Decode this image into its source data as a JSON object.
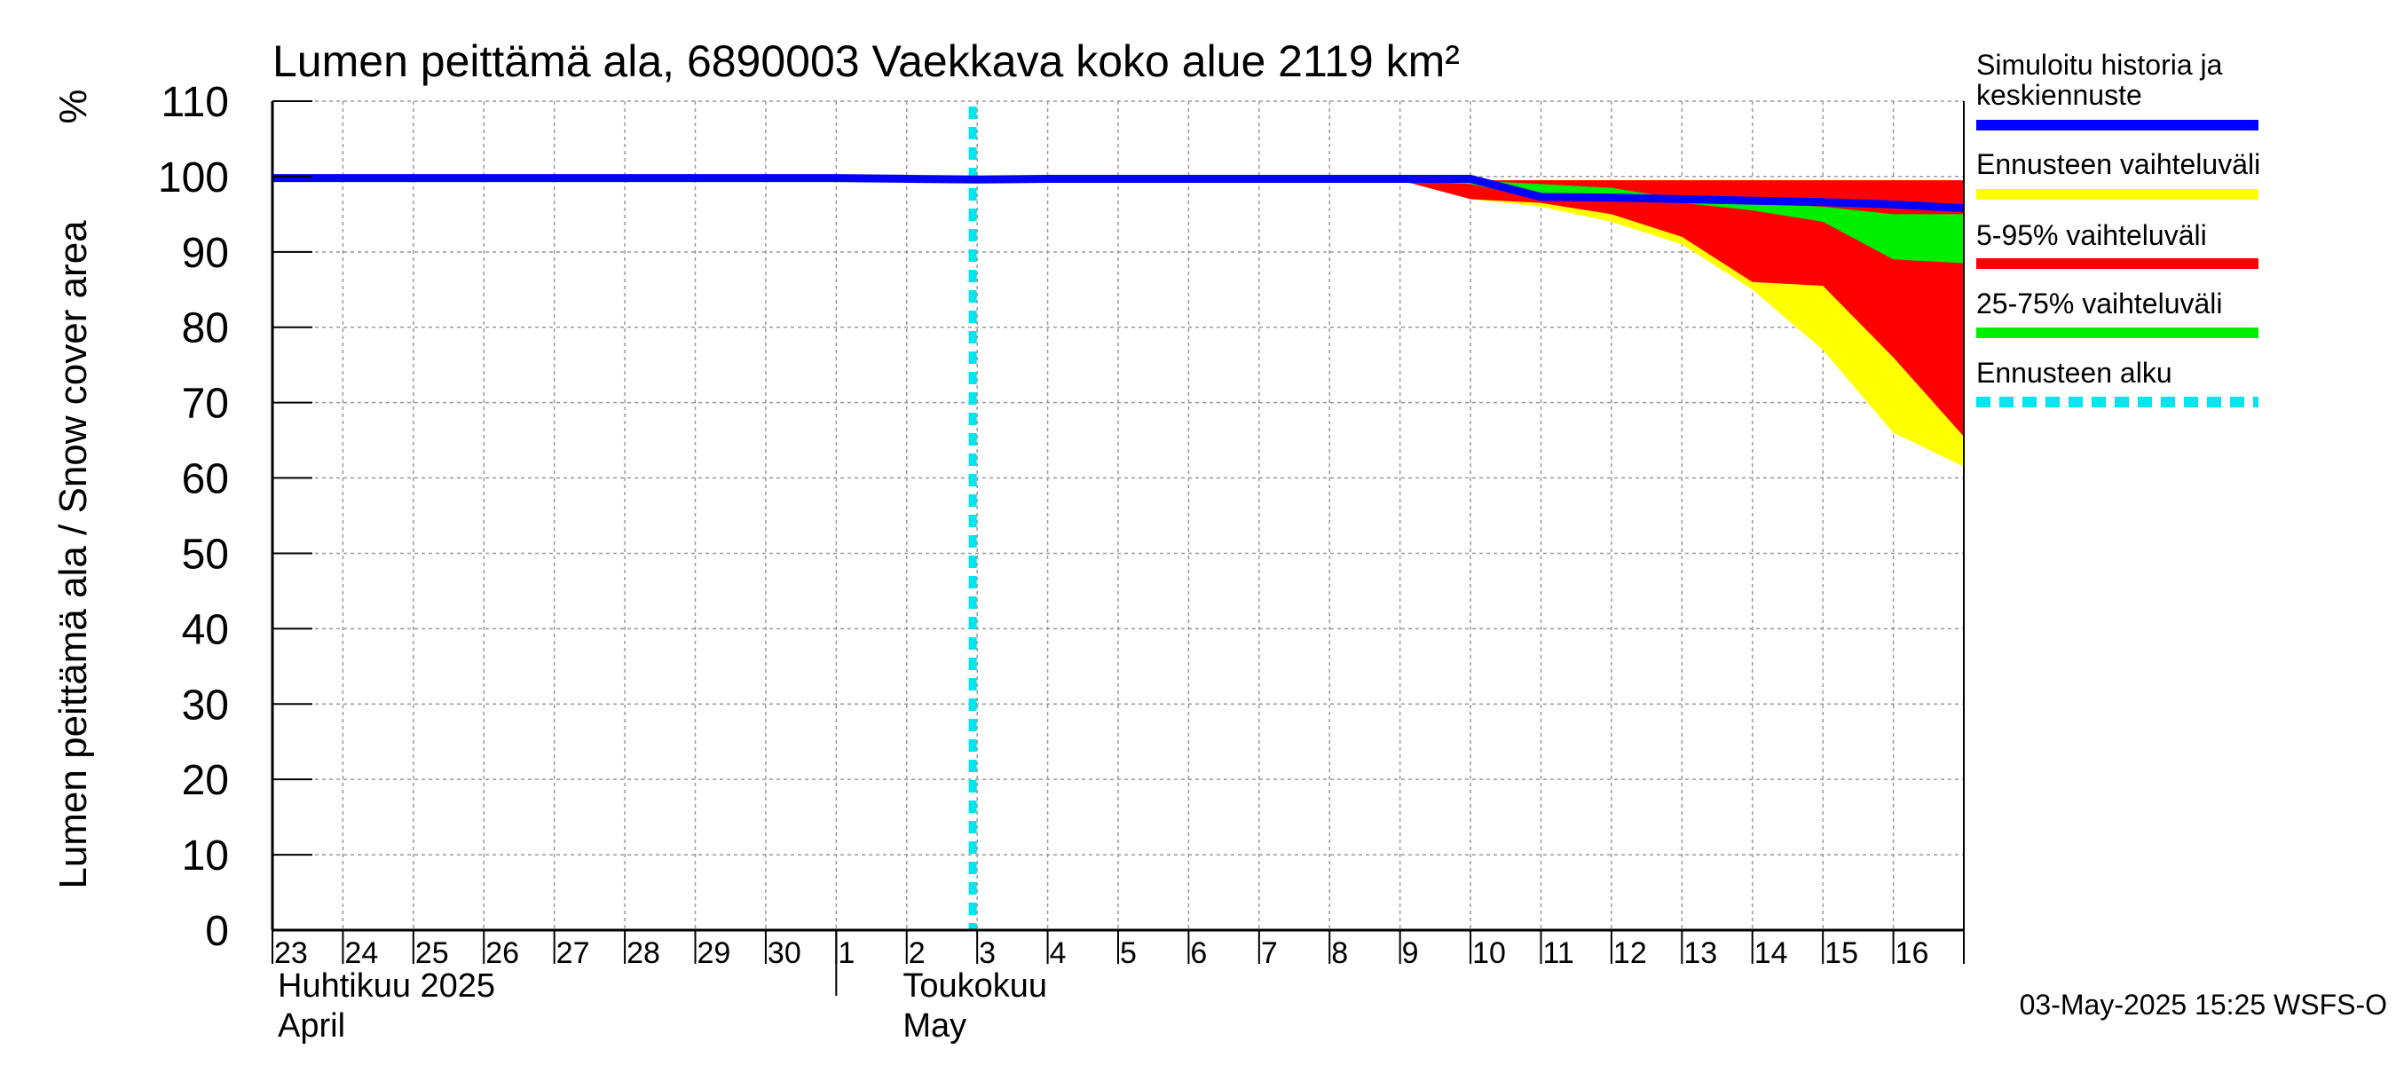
{
  "chart_data": {
    "type": "area",
    "title": "Lumen peittämä ala, 6890003 Vaekkava koko alue 2119 km²",
    "ylabel": "Lumen peittämä ala / Snow cover area",
    "yunit": "%",
    "ylim": [
      0,
      110
    ],
    "yticks": [
      0,
      10,
      20,
      30,
      40,
      50,
      60,
      70,
      80,
      90,
      100,
      110
    ],
    "xlim": [
      "2025-04-23",
      "2025-05-17"
    ],
    "xtick_labels": [
      "23",
      "24",
      "25",
      "26",
      "27",
      "28",
      "29",
      "30",
      "1",
      "2",
      "3",
      "4",
      "5",
      "6",
      "7",
      "8",
      "9",
      "10",
      "11",
      "12",
      "13",
      "14",
      "15",
      "16"
    ],
    "month_labels": [
      {
        "fi": "Huhtikuu  2025",
        "en": "April"
      },
      {
        "fi": "Toukokuu",
        "en": "May"
      }
    ],
    "grid": true,
    "legend_position": "right",
    "forecast_start": "2025-05-03",
    "series": [
      {
        "name": "Ennusteen vaihteluväli",
        "color": "#ffff00",
        "type": "band",
        "x": [
          "2025-05-09",
          "2025-05-10",
          "2025-05-11",
          "2025-05-12",
          "2025-05-13",
          "2025-05-14",
          "2025-05-15",
          "2025-05-16",
          "2025-05-17"
        ],
        "upper": [
          99.5,
          99.5,
          99.5,
          99.5,
          99.5,
          99.5,
          99.5,
          99.5,
          99.5
        ],
        "lower": [
          99.5,
          97,
          96,
          94,
          91,
          85,
          77,
          66,
          61.5
        ]
      },
      {
        "name": "5-95% vaihteluväli",
        "color": "#ff0000",
        "type": "band",
        "x": [
          "2025-05-09",
          "2025-05-10",
          "2025-05-11",
          "2025-05-12",
          "2025-05-13",
          "2025-05-14",
          "2025-05-15",
          "2025-05-16",
          "2025-05-17"
        ],
        "upper": [
          99.5,
          99.5,
          99.5,
          99.5,
          99.5,
          99.5,
          99.5,
          99.5,
          99.5
        ],
        "lower": [
          99.5,
          97,
          96.5,
          95,
          92,
          86,
          85.5,
          76,
          65.5
        ]
      },
      {
        "name": "25-75% vaihteluväli",
        "color": "#00ee00",
        "type": "band",
        "x": [
          "2025-05-09",
          "2025-05-10",
          "2025-05-11",
          "2025-05-12",
          "2025-05-13",
          "2025-05-14",
          "2025-05-15",
          "2025-05-16",
          "2025-05-17"
        ],
        "upper": [
          99.5,
          99.5,
          99,
          98.5,
          97,
          96.5,
          96,
          95,
          95
        ],
        "lower": [
          99.5,
          99,
          97,
          97,
          96.5,
          95.5,
          94,
          89,
          88.5
        ]
      },
      {
        "name": "Simuloitu historia ja keskiennuste",
        "color": "#0000ff",
        "type": "line",
        "x": [
          "2025-04-23",
          "2025-05-01",
          "2025-05-02",
          "2025-05-03",
          "2025-05-04",
          "2025-05-09",
          "2025-05-10",
          "2025-05-11",
          "2025-05-12",
          "2025-05-13",
          "2025-05-14",
          "2025-05-15",
          "2025-05-16",
          "2025-05-17"
        ],
        "values": [
          99.8,
          99.8,
          99.7,
          99.6,
          99.7,
          99.7,
          99.7,
          97.3,
          97.2,
          97,
          96.8,
          96.6,
          96.3,
          95.8
        ]
      }
    ],
    "legend": [
      {
        "label": "Simuloitu historia ja keskiennuste",
        "color": "#0000ff",
        "style": "solid"
      },
      {
        "label": "Ennusteen vaihteluväli",
        "color": "#ffff00",
        "style": "solid"
      },
      {
        "label": "5-95% vaihteluväli",
        "color": "#ff0000",
        "style": "solid"
      },
      {
        "label": "25-75% vaihteluväli",
        "color": "#00ee00",
        "style": "solid"
      },
      {
        "label": "Ennusteen alku",
        "color": "#00e5ee",
        "style": "dashed"
      }
    ],
    "footer": "03-May-2025 15:25 WSFS-O"
  }
}
